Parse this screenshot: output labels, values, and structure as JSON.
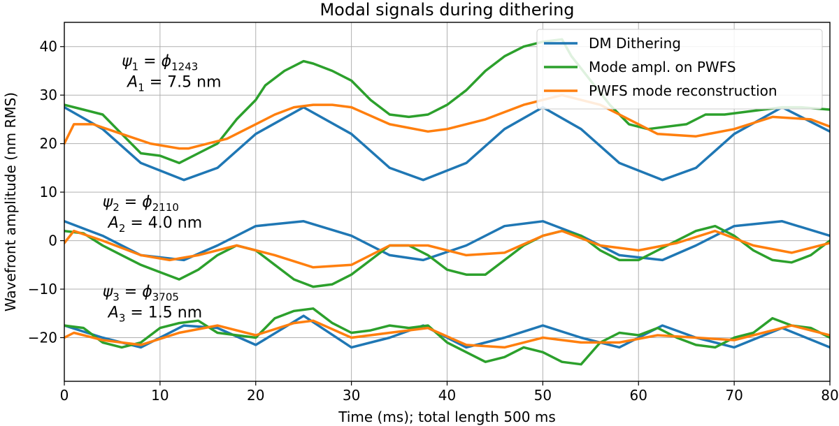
{
  "chart_data": {
    "type": "line",
    "title": "Modal signals during dithering",
    "xlabel": "Time (ms); total length 500 ms",
    "ylabel": "Wavefront amplitude (nm RMS)",
    "xlim": [
      0,
      80
    ],
    "ylim": [
      -29,
      45
    ],
    "xticks": [
      0,
      10,
      20,
      30,
      40,
      50,
      60,
      70,
      80
    ],
    "yticks": [
      -20,
      -10,
      0,
      10,
      20,
      30,
      40
    ],
    "grid": true,
    "legend": {
      "position": "top-right",
      "entries": [
        {
          "label": "DM Dithering",
          "color": "#1f77b4"
        },
        {
          "label": "Mode ampl. on PWFS",
          "color": "#2ca02c"
        },
        {
          "label": "PWFS mode reconstruction",
          "color": "#ff7f0e"
        }
      ]
    },
    "annotations": [
      {
        "psi": "ψ",
        "psi_sub": "1",
        "eq": " = ",
        "phi": "ϕ",
        "phi_sub": "1243",
        "A": "A",
        "A_sub": "1",
        "A_text": " = 7.5 nm",
        "x": 6,
        "y": 36
      },
      {
        "psi": "ψ",
        "psi_sub": "2",
        "eq": " = ",
        "phi": "ϕ",
        "phi_sub": "2110",
        "A": "A",
        "A_sub": "2",
        "A_text": " = 4.0 nm",
        "x": 4,
        "y": 7
      },
      {
        "psi": "ψ",
        "psi_sub": "3",
        "eq": " = ",
        "phi": "ϕ",
        "phi_sub": "3705",
        "A": "A",
        "A_sub": "3",
        "A_text": " = 1.5 nm",
        "x": 4,
        "y": -11.5
      }
    ],
    "series": [
      {
        "name": "DM Dithering",
        "group": "mode1",
        "color": "#1f77b4",
        "x": [
          0,
          4,
          8,
          12.5,
          16,
          20,
          25,
          30,
          34,
          37.5,
          42,
          46,
          50,
          54,
          58,
          62.5,
          66,
          70,
          75,
          80
        ],
        "y": [
          27.5,
          23,
          16,
          12.5,
          15,
          22,
          27.5,
          22,
          15,
          12.5,
          16,
          23,
          27.5,
          23,
          16,
          12.5,
          15,
          22,
          27.5,
          22.5
        ]
      },
      {
        "name": "Mode ampl. on PWFS",
        "group": "mode1",
        "color": "#2ca02c",
        "x": [
          0,
          2,
          4,
          6,
          8,
          10,
          12,
          14,
          16,
          18,
          20,
          21,
          23,
          25,
          26,
          28,
          30,
          32,
          34,
          36,
          38,
          40,
          42,
          44,
          46,
          48,
          50,
          52,
          53,
          55,
          57,
          59,
          61,
          63,
          65,
          67,
          69,
          71,
          73,
          75,
          77,
          80
        ],
        "y": [
          28,
          27,
          26,
          22,
          18,
          17.5,
          16,
          18,
          20,
          25,
          29,
          32,
          35,
          37,
          36.5,
          35,
          33,
          29,
          26,
          25.5,
          26,
          28,
          31,
          35,
          38,
          40,
          41,
          41.5,
          38,
          33,
          28,
          24,
          23,
          23.5,
          24,
          26,
          26,
          26.5,
          27,
          27.5,
          27.5,
          27
        ]
      },
      {
        "name": "PWFS mode reconstruction",
        "group": "mode1",
        "color": "#ff7f0e",
        "x": [
          0,
          1,
          3,
          6,
          9,
          12,
          13,
          15,
          17,
          20,
          22,
          24,
          26,
          28,
          30,
          34,
          38,
          40,
          44,
          48,
          50,
          52,
          56,
          60,
          62,
          66,
          70,
          74,
          78,
          80
        ],
        "y": [
          20,
          24,
          24,
          22,
          20,
          19,
          19,
          20,
          21,
          24,
          26,
          27.5,
          28,
          28,
          27.5,
          24,
          22.5,
          23,
          25,
          28,
          29,
          30,
          28,
          24,
          22,
          21.5,
          23,
          25.5,
          25,
          23.5
        ]
      },
      {
        "name": "DM Dithering",
        "group": "mode2",
        "color": "#1f77b4",
        "x": [
          0,
          4,
          8,
          12.5,
          16,
          20,
          25,
          30,
          34,
          37.5,
          42,
          46,
          50,
          54,
          58,
          62.5,
          66,
          70,
          75,
          80
        ],
        "y": [
          4,
          1,
          -3,
          -4,
          -1,
          3,
          4,
          1,
          -3,
          -4,
          -1,
          3,
          4,
          1,
          -3,
          -4,
          -1,
          3,
          4,
          1
        ]
      },
      {
        "name": "Mode ampl. on PWFS",
        "group": "mode2",
        "color": "#2ca02c",
        "x": [
          0,
          2,
          4,
          6,
          8,
          10,
          12,
          14,
          16,
          18,
          20,
          22,
          24,
          26,
          28,
          30,
          32,
          34,
          36,
          38,
          40,
          42,
          44,
          46,
          48,
          50,
          52,
          54,
          56,
          58,
          60,
          62,
          64,
          66,
          68,
          70,
          72,
          74,
          76,
          78,
          80
        ],
        "y": [
          2,
          1.5,
          -1,
          -3,
          -5,
          -6.5,
          -8,
          -6,
          -3,
          -1,
          -2,
          -5,
          -8,
          -9.5,
          -9,
          -7,
          -4,
          -1,
          -1,
          -3,
          -6,
          -7,
          -7,
          -4,
          -1,
          1,
          2,
          1,
          -2,
          -4,
          -4,
          -2,
          0,
          2,
          3,
          1,
          -2,
          -4,
          -4.5,
          -3,
          0
        ]
      },
      {
        "name": "PWFS mode reconstruction",
        "group": "mode2",
        "color": "#ff7f0e",
        "x": [
          0,
          1,
          4,
          8,
          11,
          14,
          18,
          22,
          26,
          30,
          34,
          38,
          42,
          46,
          50,
          52,
          56,
          60,
          64,
          68,
          72,
          76,
          80
        ],
        "y": [
          -0.5,
          2,
          0,
          -3,
          -4,
          -3,
          -1,
          -3,
          -5.5,
          -5,
          -1,
          -1,
          -3,
          -2.5,
          1,
          2,
          -1,
          -2,
          -0.5,
          2,
          -1,
          -2.5,
          -0.5
        ]
      },
      {
        "name": "DM Dithering",
        "group": "mode3",
        "color": "#1f77b4",
        "x": [
          0,
          4,
          8,
          12.5,
          16,
          20,
          25,
          30,
          34,
          37.5,
          42,
          46,
          50,
          54,
          58,
          62.5,
          66,
          70,
          75,
          80
        ],
        "y": [
          -17.5,
          -20,
          -22,
          -17.5,
          -18,
          -21.5,
          -15.5,
          -22,
          -20,
          -17.5,
          -22,
          -20,
          -17.5,
          -20,
          -22,
          -17.5,
          -20,
          -22,
          -18,
          -22
        ]
      },
      {
        "name": "Mode ampl. on PWFS",
        "group": "mode3",
        "color": "#2ca02c",
        "x": [
          0,
          2,
          4,
          6,
          8,
          10,
          12,
          14,
          16,
          18,
          20,
          22,
          24,
          26,
          28,
          30,
          32,
          34,
          36,
          38,
          40,
          42,
          44,
          46,
          48,
          50,
          52,
          54,
          56,
          58,
          60,
          62,
          64,
          66,
          68,
          70,
          72,
          74,
          76,
          78,
          80
        ],
        "y": [
          -17.5,
          -18,
          -21,
          -22,
          -21,
          -18,
          -17,
          -16.5,
          -19,
          -19.5,
          -20,
          -16,
          -14.5,
          -14,
          -17,
          -19,
          -18.5,
          -17.5,
          -18,
          -17.5,
          -21,
          -23,
          -25,
          -24,
          -22,
          -23,
          -25,
          -25.5,
          -21,
          -19,
          -19.5,
          -18,
          -20,
          -21.5,
          -22,
          -20,
          -19,
          -16,
          -17.5,
          -18,
          -20
        ]
      },
      {
        "name": "PWFS mode reconstruction",
        "group": "mode3",
        "color": "#ff7f0e",
        "x": [
          0,
          1,
          4,
          8,
          12,
          16,
          20,
          24,
          26,
          30,
          34,
          38,
          42,
          46,
          50,
          54,
          58,
          62,
          66,
          70,
          74,
          76,
          80
        ],
        "y": [
          -20,
          -19,
          -20.5,
          -21.5,
          -19,
          -17.5,
          -19.5,
          -17,
          -16.5,
          -20,
          -19,
          -18,
          -21.5,
          -22,
          -20,
          -21,
          -21,
          -19.5,
          -20,
          -20.5,
          -18.5,
          -17.5,
          -19.5
        ]
      }
    ]
  }
}
